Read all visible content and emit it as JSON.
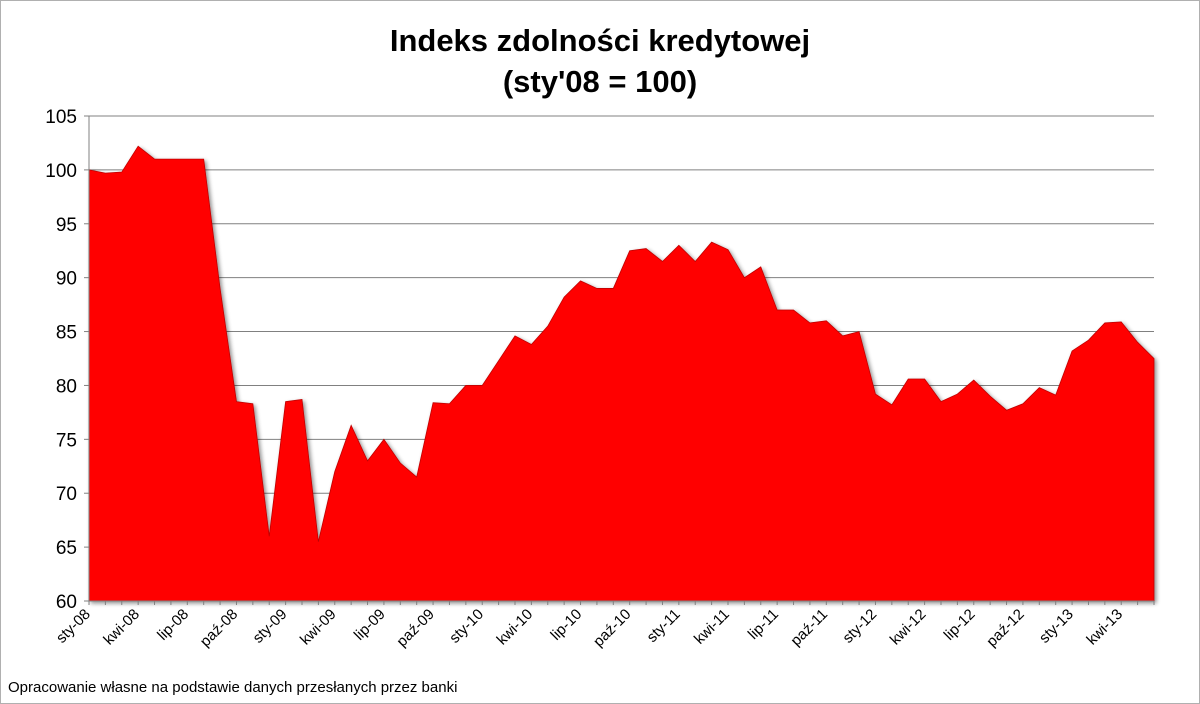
{
  "title_line1": "Indeks zdolności kredytowej",
  "title_line2": "(sty'08 = 100)",
  "footnote": "Opracowanie własne na podstawie danych przesłanych przez banki",
  "colors": {
    "area": "#ff0000",
    "area_shadow": "#c00000",
    "grid": "#808080",
    "axis": "#808080"
  },
  "chart_data": {
    "type": "area",
    "title": "Indeks zdolności kredytowej (sty'08 = 100)",
    "xlabel": "",
    "ylabel": "",
    "ylim": [
      60,
      105
    ],
    "yticks": [
      60,
      65,
      70,
      75,
      80,
      85,
      90,
      95,
      100,
      105
    ],
    "grid": true,
    "legend": "none",
    "x": [
      "sty-08",
      "lut-08",
      "mar-08",
      "kwi-08",
      "maj-08",
      "cze-08",
      "lip-08",
      "sie-08",
      "wrz-08",
      "paź-08",
      "lis-08",
      "gru-08",
      "sty-09",
      "lut-09",
      "mar-09",
      "kwi-09",
      "maj-09",
      "cze-09",
      "lip-09",
      "sie-09",
      "wrz-09",
      "paź-09",
      "lis-09",
      "gru-09",
      "sty-10",
      "lut-10",
      "mar-10",
      "kwi-10",
      "maj-10",
      "cze-10",
      "lip-10",
      "sie-10",
      "wrz-10",
      "paź-10",
      "lis-10",
      "gru-10",
      "sty-11",
      "lut-11",
      "mar-11",
      "kwi-11",
      "maj-11",
      "cze-11",
      "lip-11",
      "sie-11",
      "wrz-11",
      "paź-11",
      "lis-11",
      "gru-11",
      "sty-12",
      "lut-12",
      "mar-12",
      "kwi-12",
      "maj-12",
      "cze-12",
      "lip-12",
      "sie-12",
      "wrz-12",
      "paź-12",
      "lis-12",
      "gru-12",
      "sty-13",
      "lut-13",
      "mar-13",
      "kwi-13",
      "maj-13",
      "cze-13"
    ],
    "x_tick_labels": [
      "sty-08",
      "kwi-08",
      "lip-08",
      "paź-08",
      "sty-09",
      "kwi-09",
      "lip-09",
      "paź-09",
      "sty-10",
      "kwi-10",
      "lip-10",
      "paź-10",
      "sty-11",
      "kwi-11",
      "lip-11",
      "paź-11",
      "sty-12",
      "kwi-12",
      "lip-12",
      "paź-12",
      "sty-13",
      "kwi-13"
    ],
    "series": [
      {
        "values": [
          100,
          99.7,
          99.8,
          102.2,
          101,
          101,
          101,
          101,
          89,
          78.5,
          78.3,
          66,
          78.5,
          78.7,
          65.5,
          72,
          76.3,
          73,
          75,
          72.8,
          71.5,
          78.4,
          78.3,
          80,
          80,
          82.3,
          84.6,
          83.8,
          85.5,
          88.2,
          89.7,
          89,
          89,
          92.5,
          92.7,
          91.5,
          93,
          91.5,
          93.3,
          92.6,
          90,
          91,
          87,
          87,
          85.8,
          86,
          84.6,
          85,
          79.2,
          78.2,
          80.6,
          80.6,
          78.5,
          79.2,
          80.5,
          79,
          77.7,
          78.3,
          79.8,
          79.1,
          83.2,
          84.2,
          85.8,
          85.9,
          84,
          82.5
        ]
      }
    ]
  }
}
